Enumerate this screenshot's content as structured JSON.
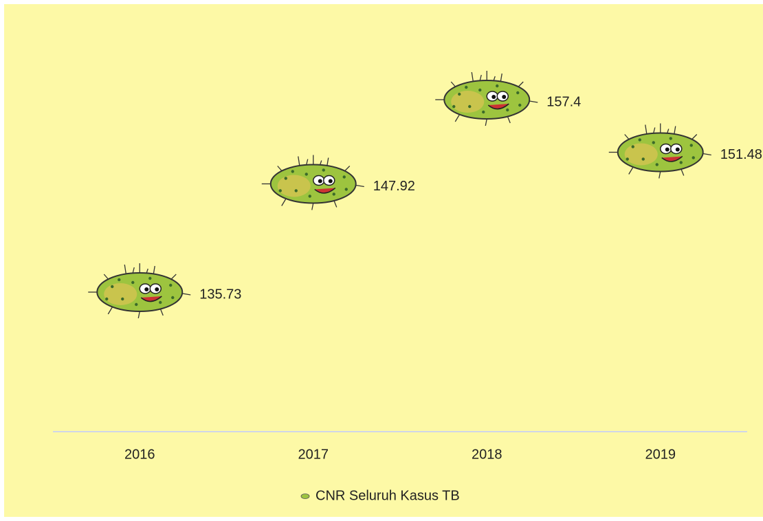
{
  "chart_data": {
    "type": "scatter",
    "categories": [
      "2016",
      "2017",
      "2018",
      "2019"
    ],
    "series": [
      {
        "name": "CNR Seluruh Kasus TB",
        "color": "#9dc43f",
        "values": [
          135.73,
          147.92,
          157.4,
          151.48
        ]
      }
    ],
    "legend": "bottom"
  }
}
